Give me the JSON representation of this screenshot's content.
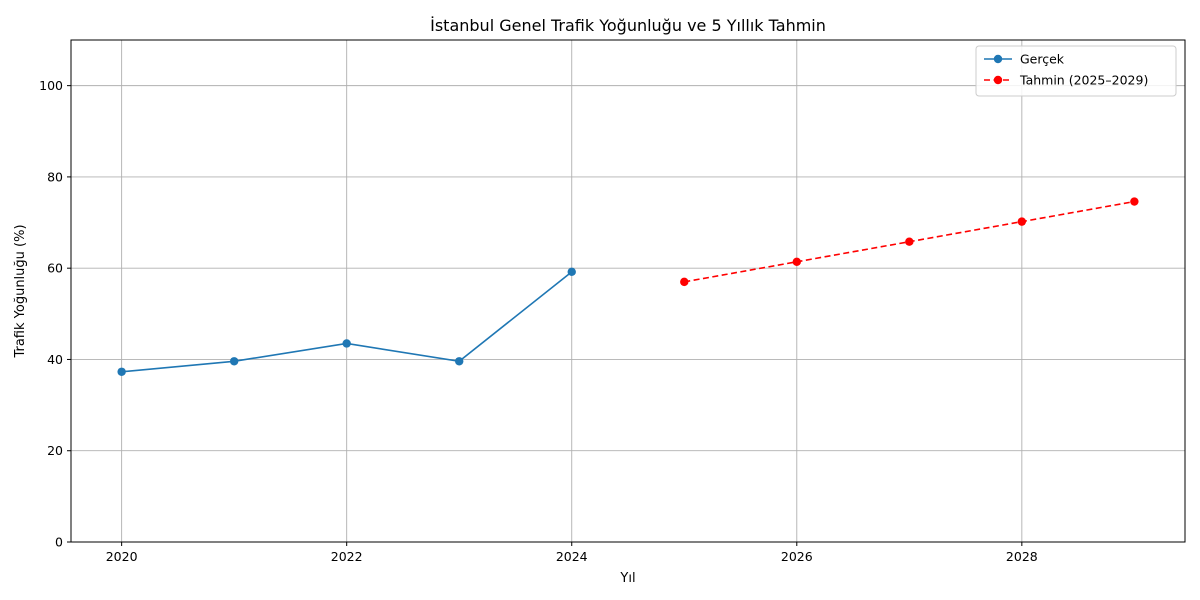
{
  "chart_data": {
    "type": "line",
    "title": "İstanbul Genel Trafik Yoğunluğu ve 5 Yıllık Tahmin",
    "xlabel": "Yıl",
    "ylabel": "Trafik Yoğunluğu (%)",
    "xlim": [
      2019.55,
      2029.45
    ],
    "ylim": [
      0,
      110
    ],
    "xticks": [
      2020,
      2022,
      2024,
      2026,
      2028
    ],
    "yticks": [
      0,
      20,
      40,
      60,
      80,
      100
    ],
    "grid": true,
    "legend_position": "top-right",
    "series": [
      {
        "name": "Gerçek",
        "color": "#1f77b4",
        "line_style": "solid",
        "marker": "circle",
        "x": [
          2020,
          2021,
          2022,
          2023,
          2024
        ],
        "y": [
          37.3,
          39.6,
          43.5,
          39.6,
          59.2
        ]
      },
      {
        "name": "Tahmin (2025–2029)",
        "color": "#ff0000",
        "line_style": "dashed",
        "marker": "circle",
        "x": [
          2025,
          2026,
          2027,
          2028,
          2029
        ],
        "y": [
          57.0,
          61.4,
          65.8,
          70.2,
          74.6
        ]
      }
    ]
  }
}
